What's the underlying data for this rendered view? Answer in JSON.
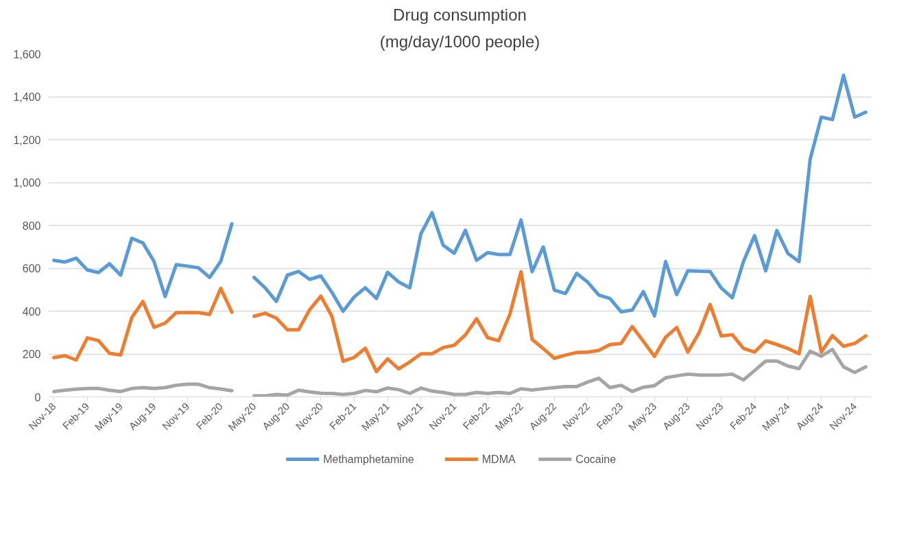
{
  "chart_data": {
    "type": "line",
    "title": "Drug consumption",
    "subtitle": "(mg/day/1000 people)",
    "categories": [
      "Nov-18",
      null,
      null,
      "Feb-19",
      null,
      null,
      "May-19",
      null,
      null,
      "Aug-19",
      null,
      null,
      "Nov-19",
      null,
      null,
      "Feb-20",
      null,
      null,
      "May-20",
      null,
      null,
      "Aug-20",
      null,
      null,
      "Nov-20",
      null,
      null,
      "Feb-21",
      null,
      null,
      "May-21",
      null,
      null,
      "Aug-21",
      null,
      null,
      "Nov-21",
      null,
      null,
      "Feb-22",
      null,
      null,
      "May-22",
      null,
      null,
      "Aug-22",
      null,
      null,
      "Nov-22",
      null,
      null,
      "Feb-23",
      null,
      null,
      "May-23",
      null,
      null,
      "Aug-23",
      null,
      null,
      "Nov-23",
      null,
      null,
      "Feb-24",
      null,
      null,
      "May-24",
      null,
      null,
      "Aug-24",
      null,
      null,
      "Nov-24",
      null
    ],
    "series": [
      {
        "name": "Methamphetamine",
        "color": "#5b9bd5",
        "values": [
          637,
          629,
          647,
          592,
          580,
          621,
          568,
          740,
          718,
          632,
          468,
          617,
          610,
          602,
          557,
          632,
          807,
          null,
          557,
          508,
          445,
          568,
          585,
          548,
          564,
          487,
          399,
          466,
          509,
          459,
          581,
          536,
          509,
          761,
          859,
          707,
          670,
          777,
          637,
          673,
          664,
          664,
          825,
          584,
          699,
          498,
          482,
          576,
          535,
          475,
          459,
          397,
          405,
          491,
          378,
          631,
          477,
          588,
          586,
          585,
          508,
          462,
          631,
          752,
          588,
          776,
          669,
          631,
          1109,
          1305,
          1293,
          1500,
          1305,
          1328
        ]
      },
      {
        "name": "MDMA",
        "color": "#ed7d31",
        "values": [
          183,
          192,
          172,
          275,
          263,
          203,
          195,
          370,
          445,
          324,
          344,
          393,
          393,
          393,
          385,
          506,
          395,
          null,
          376,
          390,
          367,
          313,
          313,
          407,
          470,
          375,
          166,
          184,
          227,
          118,
          177,
          131,
          163,
          201,
          201,
          230,
          241,
          289,
          364,
          276,
          262,
          386,
          584,
          268,
          225,
          180,
          195,
          207,
          209,
          217,
          244,
          249,
          328,
          259,
          189,
          278,
          324,
          209,
          298,
          431,
          284,
          290,
          226,
          209,
          261,
          244,
          226,
          201,
          468,
          209,
          286,
          236,
          249,
          284
        ]
      },
      {
        "name": "Cocaine",
        "color": "#a5a5a5",
        "values": [
          25,
          31,
          36,
          39,
          39,
          31,
          25,
          39,
          43,
          39,
          43,
          54,
          59,
          59,
          43,
          37,
          29,
          null,
          5,
          5,
          11,
          8,
          31,
          23,
          17,
          16,
          11,
          16,
          30,
          24,
          41,
          34,
          16,
          41,
          27,
          21,
          11,
          11,
          21,
          16,
          21,
          16,
          38,
          32,
          38,
          43,
          48,
          48,
          69,
          87,
          43,
          54,
          25,
          45,
          52,
          89,
          98,
          106,
          102,
          102,
          102,
          106,
          79,
          123,
          167,
          167,
          144,
          132,
          213,
          190,
          221,
          140,
          114,
          140
        ]
      }
    ],
    "ylim": [
      0,
      1600
    ],
    "yticks": [
      0,
      200,
      400,
      600,
      800,
      {
        "value": 1000,
        "label": "1,000"
      },
      {
        "value": 1200,
        "label": "1,200"
      },
      {
        "value": 1400,
        "label": "1,400"
      },
      {
        "value": 1600,
        "label": "1,600"
      }
    ],
    "grid": "y",
    "legend": "bottom",
    "marker": "none",
    "line_style": "solid"
  }
}
